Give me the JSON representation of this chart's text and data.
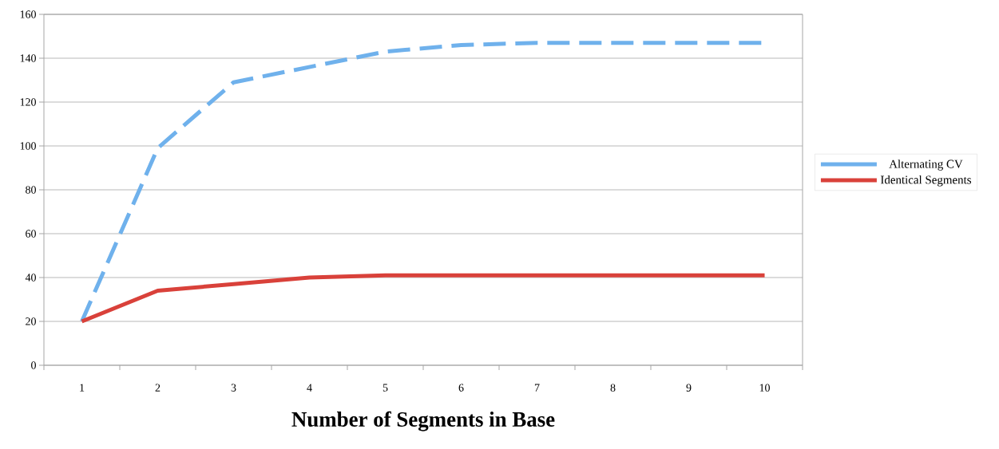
{
  "chart_data": {
    "type": "line",
    "xlabel": "Number of Segments in Base",
    "categories": [
      "1",
      "2",
      "3",
      "4",
      "5",
      "6",
      "7",
      "8",
      "9",
      "10"
    ],
    "series": [
      {
        "name": "Alternating CV",
        "color": "#6fb1ec",
        "line_style": "dashed",
        "values": [
          20,
          99,
          129,
          136,
          143,
          146,
          147,
          147,
          147,
          147
        ]
      },
      {
        "name": "Identical Segments",
        "color": "#d9413a",
        "line_style": "solid",
        "values": [
          20,
          34,
          37,
          40,
          41,
          41,
          41,
          41,
          41,
          41
        ]
      }
    ],
    "ylim": [
      0,
      160
    ],
    "yticks": [
      0,
      20,
      40,
      60,
      80,
      100,
      120,
      140,
      160
    ],
    "grid": "y",
    "legend": "right",
    "marker": "none"
  }
}
